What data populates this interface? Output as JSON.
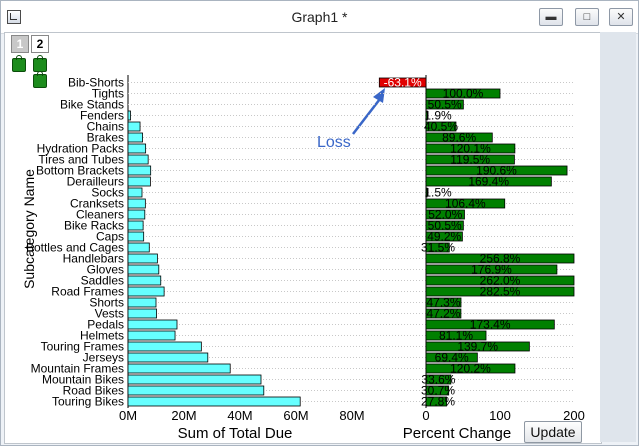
{
  "window": {
    "title": "Graph1 *"
  },
  "layer_tabs": [
    "1",
    "2"
  ],
  "update_button": "Update",
  "annotation": {
    "text": "Loss"
  },
  "chart_data": [
    {
      "type": "bar",
      "orientation": "horizontal",
      "xlabel": "Sum of Total Due",
      "ylabel": "Subcategory Name",
      "xlim": [
        0,
        80000000
      ],
      "x_ticks": [
        "0M",
        "20M",
        "40M",
        "60M",
        "80M"
      ],
      "bar_color": "#66ffff",
      "categories": [
        "Bib-Shorts",
        "Tights",
        "Bike Stands",
        "Fenders",
        "Chains",
        "Brakes",
        "Hydration Packs",
        "Tires and Tubes",
        "Bottom Brackets",
        "Derailleurs",
        "Socks",
        "Cranksets",
        "Cleaners",
        "Bike Racks",
        "Caps",
        "Bottles and Cages",
        "Handlebars",
        "Gloves",
        "Saddles",
        "Road Frames",
        "Shorts",
        "Vests",
        "Pedals",
        "Helmets",
        "Touring Frames",
        "Jerseys",
        "Mountain Frames",
        "Mountain Bikes",
        "Road Bikes",
        "Touring Bikes"
      ],
      "values": [
        0,
        0,
        0,
        0.9,
        4.3,
        5.2,
        6.3,
        7.2,
        8.1,
        8.0,
        5.0,
        6.2,
        6.0,
        5.4,
        5.6,
        7.6,
        10.5,
        11.0,
        11.7,
        12.9,
        10.0,
        10.2,
        17.5,
        16.8,
        26.2,
        28.5,
        36.5,
        47.5,
        48.5,
        61.5
      ],
      "values_unit": "M"
    },
    {
      "type": "bar",
      "orientation": "horizontal",
      "xlabel": "Percent Change",
      "xlim": [
        0,
        200
      ],
      "x_ticks": [
        "0",
        "100",
        "200"
      ],
      "bar_color": "#008000",
      "negative_color": "#e00000",
      "categories": [
        "Bib-Shorts",
        "Tights",
        "Bike Stands",
        "Fenders",
        "Chains",
        "Brakes",
        "Hydration Packs",
        "Tires and Tubes",
        "Bottom Brackets",
        "Derailleurs",
        "Socks",
        "Cranksets",
        "Cleaners",
        "Bike Racks",
        "Caps",
        "Bottles and Cages",
        "Handlebars",
        "Gloves",
        "Saddles",
        "Road Frames",
        "Shorts",
        "Vests",
        "Pedals",
        "Helmets",
        "Touring Frames",
        "Jerseys",
        "Mountain Frames",
        "Mountain Bikes",
        "Road Bikes",
        "Touring Bikes"
      ],
      "values": [
        -63.1,
        100.0,
        50.5,
        1.9,
        40.5,
        89.6,
        120.1,
        119.5,
        190.6,
        169.4,
        1.5,
        106.4,
        52.0,
        50.5,
        49.2,
        31.5,
        256.8,
        176.9,
        262.0,
        282.5,
        47.3,
        47.2,
        173.4,
        81.1,
        139.7,
        69.4,
        120.2,
        33.6,
        30.7,
        27.8
      ],
      "data_labels": [
        "-63.1%",
        "100.0%",
        "50.5%",
        "1.9%",
        "40.5%",
        "89.6%",
        "120.1%",
        "119.5%",
        "190.6%",
        "169.4%",
        "1.5%",
        "106.4%",
        "52.0%",
        "50.5%",
        "49.2%",
        "31.5%",
        "256.8%",
        "176.9%",
        "262.0%",
        "282.5%",
        "47.3%",
        "47.2%",
        "173.4%",
        "81.1%",
        "139.7%",
        "69.4%",
        "120.2%",
        "33.6%",
        "30.7%",
        "27.8%"
      ]
    }
  ]
}
